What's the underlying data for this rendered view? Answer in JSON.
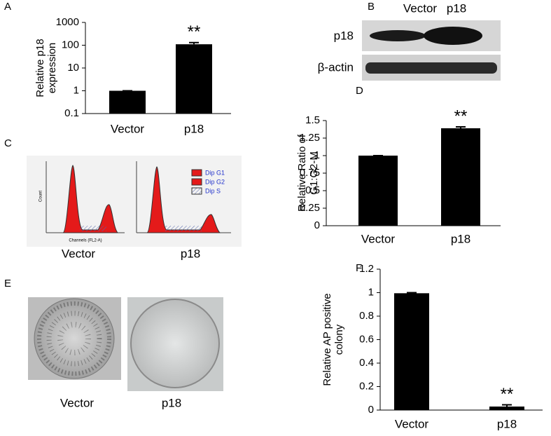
{
  "chart_data": [
    {
      "type": "bar",
      "panel": "A",
      "log": true,
      "ylabel": [
        "Relative p18",
        "expression"
      ],
      "categories": [
        "Vector",
        "p18"
      ],
      "values": [
        1,
        110
      ],
      "errors": [
        0,
        20
      ],
      "color": "#000000",
      "significance": [
        null,
        "**"
      ],
      "ylim": [
        0.1,
        1000
      ],
      "yticks": [
        0.1,
        1,
        10,
        100,
        1000
      ]
    },
    {
      "type": "bar",
      "panel": "D",
      "log": false,
      "ylabel": [
        "Relative Ratio of",
        "G1:G2-M"
      ],
      "categories": [
        "Vector",
        "p18"
      ],
      "values": [
        1,
        1.39
      ],
      "errors": [
        0,
        0.02
      ],
      "color": "#000000",
      "significance": [
        null,
        "**"
      ],
      "ylim": [
        0,
        1.5
      ],
      "yticks": [
        0,
        0.25,
        0.5,
        0.75,
        1,
        1.25,
        1.5
      ]
    },
    {
      "type": "bar",
      "panel": "F",
      "log": false,
      "ylabel": [
        "Relative AP positive",
        "colony"
      ],
      "categories": [
        "Vector",
        "p18"
      ],
      "values": [
        0.995,
        0.03
      ],
      "errors": [
        0.005,
        0.015
      ],
      "color": "#000000",
      "significance": [
        null,
        "**"
      ],
      "ylim": [
        0,
        1.2
      ],
      "yticks": [
        0,
        0.2,
        0.4,
        0.6,
        0.8,
        1,
        1.2
      ]
    }
  ],
  "blot": {
    "panel": "B",
    "columns": [
      "Vector",
      "p18"
    ],
    "rows": [
      "p18",
      "β-actin"
    ]
  },
  "flow": {
    "panel": "C",
    "samples": [
      "Vector",
      "p18"
    ],
    "legend": [
      "Dip G1",
      "Dip G2",
      "Dip S"
    ],
    "ylabel": "Count",
    "xlabel": "Channels (FL2-A)"
  },
  "colony": {
    "panel": "E",
    "samples": [
      "Vector",
      "p18"
    ]
  }
}
